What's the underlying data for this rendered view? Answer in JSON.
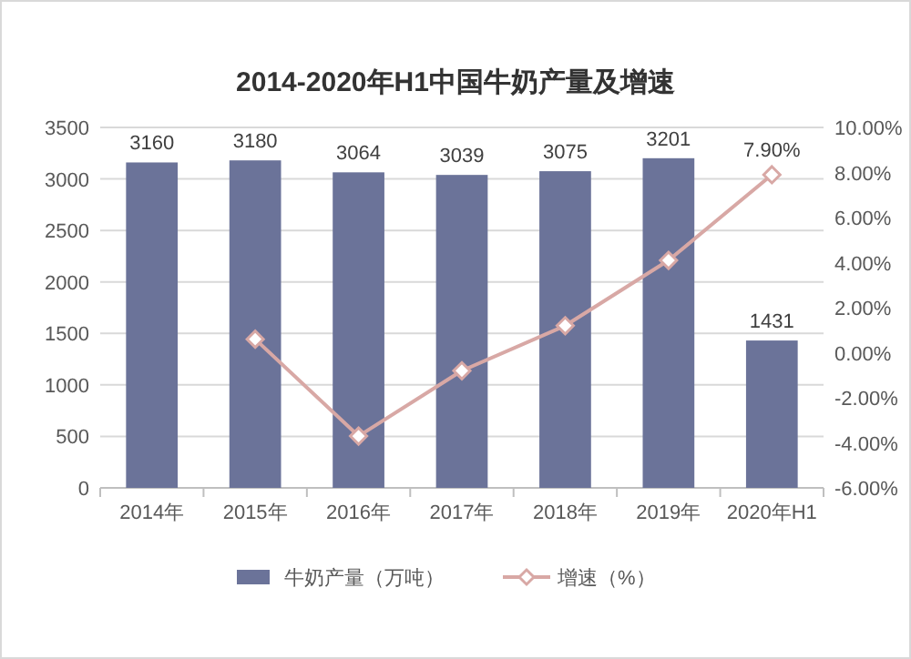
{
  "chart_data": {
    "type": "bar",
    "title": "2014-2020年H1中国牛奶产量及增速",
    "categories": [
      "2014年",
      "2015年",
      "2016年",
      "2017年",
      "2018年",
      "2019年",
      "2020年H1"
    ],
    "series": [
      {
        "name": "牛奶产量（万吨）",
        "color": "#6b7399",
        "values": [
          3160,
          3180,
          3064,
          3039,
          3075,
          3201,
          1431
        ],
        "data_labels": true
      },
      {
        "name": "增速（%）",
        "type": "line",
        "axis": "y2",
        "color": "#d8a8a5",
        "marker": "diamond",
        "values": [
          null,
          0.6,
          -3.7,
          -0.8,
          1.2,
          4.1,
          7.9
        ],
        "value_labels": [
          null,
          null,
          null,
          null,
          null,
          null,
          "7.90%"
        ]
      }
    ],
    "ylim": [
      0,
      3500
    ],
    "yticks": [
      0,
      500,
      1000,
      1500,
      2000,
      2500,
      3000,
      3500
    ],
    "y2lim": [
      -6,
      10
    ],
    "y2ticks": [
      {
        "value": -6,
        "label": "-6.00%"
      },
      {
        "value": -4,
        "label": "-4.00%"
      },
      {
        "value": -2,
        "label": "-2.00%"
      },
      {
        "value": 0,
        "label": "0.00%"
      },
      {
        "value": 2,
        "label": "2.00%"
      },
      {
        "value": 4,
        "label": "4.00%"
      },
      {
        "value": 6,
        "label": "6.00%"
      },
      {
        "value": 8,
        "label": "8.00%"
      },
      {
        "value": 10,
        "label": "10.00%"
      }
    ],
    "grid": "y",
    "legend": "bottom"
  }
}
